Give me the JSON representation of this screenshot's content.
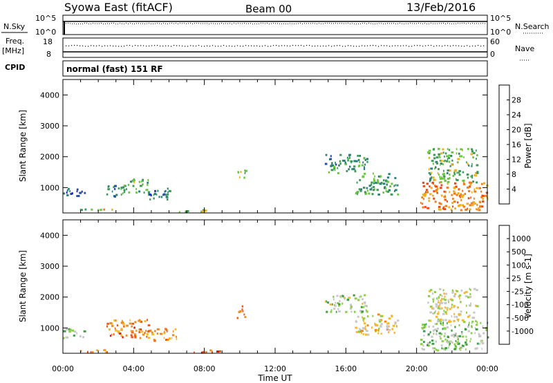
{
  "header": {
    "station": "Syowa East (fitACF)",
    "beam": "Beam 00",
    "date": "13/Feb/2016"
  },
  "status_panel": {
    "nsky_label": "N.Sky",
    "nsearch_label": "N.Search",
    "nsky_ticks": [
      "10^5",
      "10^0"
    ],
    "nsearch_ticks": [
      "10^5",
      "10^0"
    ],
    "freq_label": "Freq.",
    "freq_unit": "[MHz]",
    "freq_ticks": [
      "18",
      "8"
    ],
    "nave_label": "Nave",
    "nave_ticks": [
      "60",
      "0"
    ],
    "cpid_label": "CPID",
    "cpid_value": "normal (fast) 151 RF"
  },
  "colors": {
    "power_scale": [
      "#1010e6",
      "#2a4faa",
      "#2e7f78",
      "#3f9a5c",
      "#6cc640",
      "#f0b01a",
      "#f07c1c",
      "#e84a18",
      "#e01010"
    ],
    "velocity_scale": [
      "#e01010",
      "#f05818",
      "#f08c1c",
      "#f6b830",
      "#c8c8c8",
      "#8ccf4a",
      "#3e9e48",
      "#2a6aa8",
      "#1414d8"
    ]
  },
  "chart_data": [
    {
      "type": "heatmap",
      "name": "power",
      "xlabel": "Time UT",
      "ylabel": "Slant Range [km]",
      "xlim": [
        0,
        24
      ],
      "ylim": [
        180,
        4500
      ],
      "x_ticks": [
        "00:00",
        "04:00",
        "08:00",
        "12:00",
        "16:00",
        "20:00",
        "00:00"
      ],
      "y_ticks": [
        1000,
        2000,
        3000,
        4000
      ],
      "colorbar": {
        "label": "Power [dB]",
        "min": 0,
        "max": 32,
        "ticks": [
          "4",
          "8",
          "12",
          "16",
          "20",
          "24",
          "28"
        ]
      },
      "echo_regions": [
        {
          "t": [
            0.0,
            1.2
          ],
          "r": [
            700,
            1000
          ],
          "level": 0.2
        },
        {
          "t": [
            0.8,
            2.0
          ],
          "r": [
            250,
            350
          ],
          "level": 0.45
        },
        {
          "t": [
            2.0,
            2.8
          ],
          "r": [
            240,
            330
          ],
          "level": 0.55
        },
        {
          "t": [
            2.4,
            3.2
          ],
          "r": [
            700,
            1100
          ],
          "level": 0.3
        },
        {
          "t": [
            3.2,
            4.8
          ],
          "r": [
            800,
            1300
          ],
          "level": 0.42
        },
        {
          "t": [
            4.8,
            6.4
          ],
          "r": [
            600,
            1000
          ],
          "level": 0.25
        },
        {
          "t": [
            6.5,
            8.9
          ],
          "r": [
            230,
            320
          ],
          "level": 0.5
        },
        {
          "t": [
            9.8,
            10.3
          ],
          "r": [
            1350,
            1750
          ],
          "level": 0.45
        },
        {
          "t": [
            14.8,
            17.2
          ],
          "r": [
            1500,
            2100
          ],
          "level": 0.35
        },
        {
          "t": [
            16.5,
            18.9
          ],
          "r": [
            800,
            1500
          ],
          "level": 0.4
        },
        {
          "t": [
            20.2,
            24.0
          ],
          "r": [
            300,
            1200
          ],
          "level": 0.72
        },
        {
          "t": [
            20.6,
            23.4
          ],
          "r": [
            1200,
            2300
          ],
          "level": 0.45
        }
      ]
    },
    {
      "type": "heatmap",
      "name": "velocity",
      "xlabel": "Time UT",
      "ylabel": "Slant Range [km]",
      "xlim": [
        0,
        24
      ],
      "ylim": [
        180,
        4500
      ],
      "x_ticks": [
        "00:00",
        "04:00",
        "08:00",
        "12:00",
        "16:00",
        "20:00",
        "00:00"
      ],
      "y_ticks": [
        1000,
        2000,
        3000,
        4000
      ],
      "colorbar": {
        "label": "Velocity [m s-1]",
        "min": -1000,
        "max": 1000,
        "ticks": [
          "1000",
          "500",
          "100",
          "25",
          "-25",
          "-100",
          "-500",
          "-1000"
        ]
      },
      "echo_regions": [
        {
          "t": [
            0.0,
            1.2
          ],
          "r": [
            700,
            1000
          ],
          "level": 0.62
        },
        {
          "t": [
            0.8,
            2.8
          ],
          "r": [
            240,
            340
          ],
          "level": 0.3
        },
        {
          "t": [
            2.4,
            4.8
          ],
          "r": [
            700,
            1300
          ],
          "level": 0.25
        },
        {
          "t": [
            4.8,
            6.4
          ],
          "r": [
            600,
            1000
          ],
          "level": 0.33
        },
        {
          "t": [
            6.5,
            8.9
          ],
          "r": [
            230,
            320
          ],
          "level": 0.2
        },
        {
          "t": [
            9.8,
            10.3
          ],
          "r": [
            1350,
            1750
          ],
          "level": 0.18
        },
        {
          "t": [
            14.8,
            17.2
          ],
          "r": [
            1500,
            2100
          ],
          "level": 0.55
        },
        {
          "t": [
            16.5,
            18.9
          ],
          "r": [
            800,
            1500
          ],
          "level": 0.45
        },
        {
          "t": [
            20.2,
            24.0
          ],
          "r": [
            300,
            1200
          ],
          "level": 0.6
        },
        {
          "t": [
            20.6,
            23.4
          ],
          "r": [
            1200,
            2300
          ],
          "level": 0.5
        }
      ]
    }
  ]
}
